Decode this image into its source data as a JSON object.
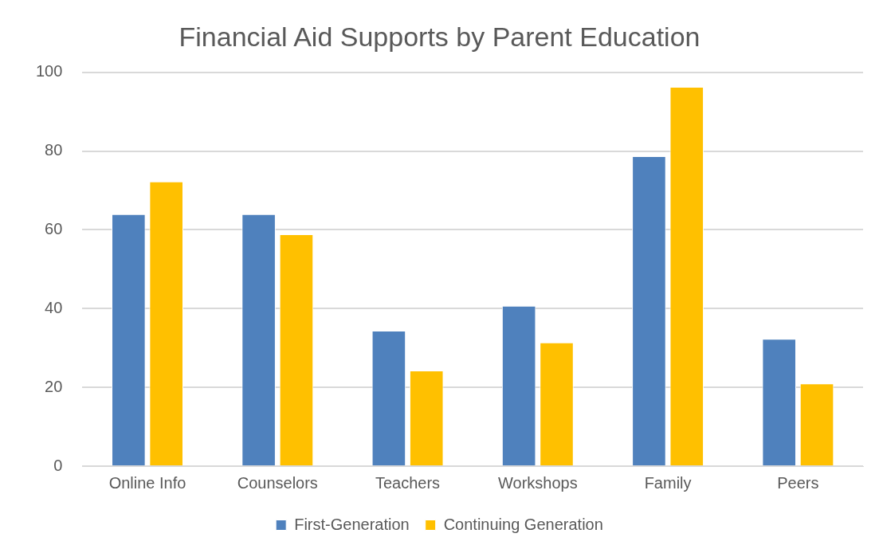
{
  "chart_data": {
    "type": "bar",
    "title": "Financial Aid Supports by Parent Education",
    "categories": [
      "Online Info",
      "Counselors",
      "Teachers",
      "Workshops",
      "Family",
      "Peers"
    ],
    "series": [
      {
        "name": "First-Generation",
        "color": "#4f81bd",
        "values": [
          64,
          64,
          34.4,
          40.7,
          78.7,
          32.3
        ]
      },
      {
        "name": "Continuing Generation",
        "color": "#ffc000",
        "values": [
          72.3,
          58.9,
          24.3,
          31.4,
          96.3,
          21
        ]
      }
    ],
    "ylim": [
      0,
      100
    ],
    "yticks": [
      0,
      20,
      40,
      60,
      80,
      100
    ],
    "grid": "y",
    "legend": "bottom"
  }
}
